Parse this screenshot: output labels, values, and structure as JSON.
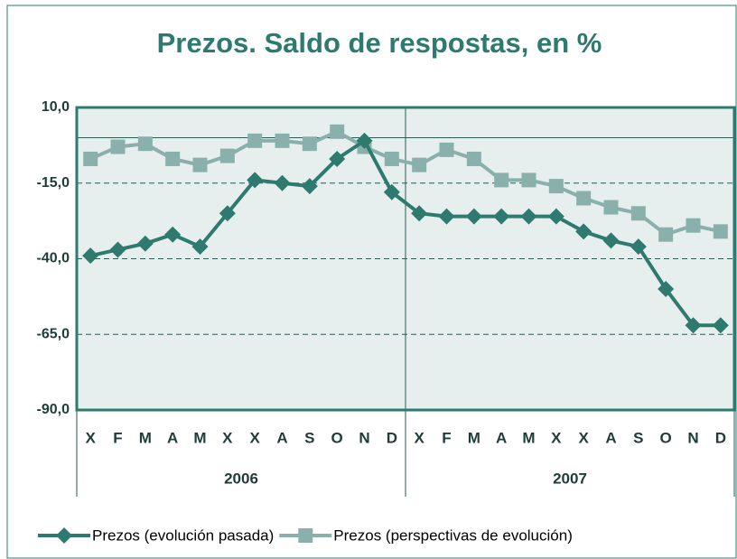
{
  "chart_data": {
    "type": "line",
    "title": "Prezos. Saldo de respostas, en %",
    "categories": [
      "X",
      "F",
      "M",
      "A",
      "M",
      "X",
      "X",
      "A",
      "S",
      "O",
      "N",
      "D",
      "X",
      "F",
      "M",
      "A",
      "M",
      "X",
      "X",
      "A",
      "S",
      "O",
      "N",
      "D"
    ],
    "groups": [
      "2006",
      "2007"
    ],
    "series": [
      {
        "name": "Prezos (evolución pasada)",
        "color": "#2e7a6e",
        "marker": "diamond",
        "values": [
          -39,
          -37,
          -35,
          -32,
          -36,
          -25,
          -14,
          -15,
          -16,
          -7,
          -1,
          -18,
          -25,
          -26,
          -26,
          -26,
          -26,
          -26,
          -31,
          -34,
          -36,
          -50,
          -62,
          -62
        ]
      },
      {
        "name": "Prezos (perspectivas de evolución)",
        "color": "#8ab0ab",
        "marker": "square",
        "values": [
          -7,
          -3,
          -2,
          -7,
          -9,
          -6,
          -1,
          -1,
          -2,
          2,
          -3,
          -7,
          -9,
          -4,
          -7,
          -14,
          -14,
          -16,
          -20,
          -23,
          -25,
          -32,
          -29,
          -31
        ]
      }
    ],
    "ylim": [
      -90,
      10
    ],
    "yticks": [
      {
        "value": -90,
        "label": "-90,0"
      },
      {
        "value": -65,
        "label": "-65,0"
      },
      {
        "value": -40,
        "label": "-40,0"
      },
      {
        "value": -15,
        "label": "-15,0"
      },
      {
        "value": 10,
        "label": "10,0"
      }
    ],
    "reference_line": 0,
    "grid": true,
    "legend": "bottom"
  }
}
